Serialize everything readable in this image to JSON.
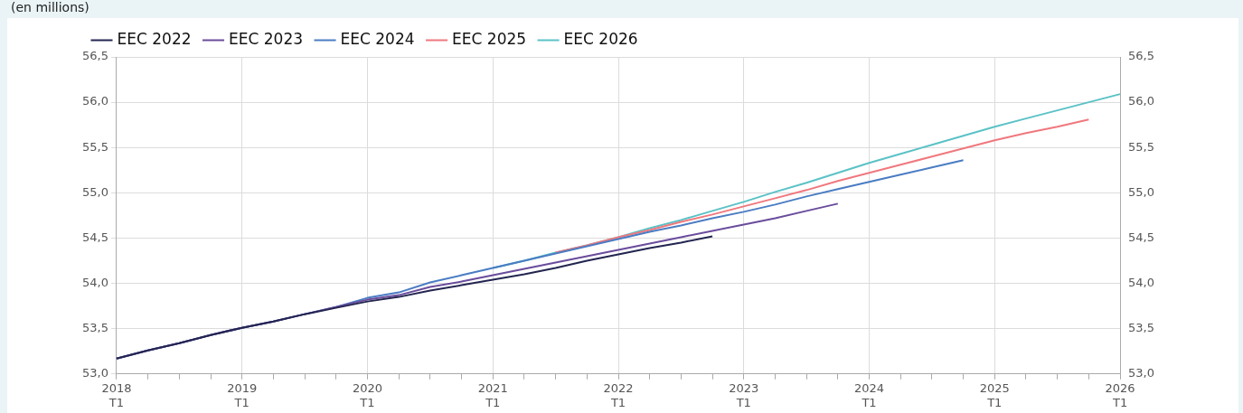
{
  "chart_data": {
    "type": "line",
    "annotations": [
      "(en millions)"
    ],
    "categories": [
      "2018\nT1",
      null,
      null,
      null,
      "2019\nT1",
      null,
      null,
      null,
      "2020\nT1",
      null,
      null,
      null,
      "2021\nT1",
      null,
      null,
      null,
      "2022\nT1",
      null,
      null,
      null,
      "2023\nT1",
      null,
      null,
      null,
      "2024\nT1",
      null,
      null,
      null,
      "2025\nT1",
      null,
      null,
      null,
      "2026\nT1"
    ],
    "series": [
      {
        "name": "EEC 2022",
        "color": "#232550",
        "values": [
          53.17,
          53.26,
          53.34,
          53.43,
          53.51,
          53.58,
          53.66,
          53.73,
          53.8,
          53.85,
          53.92,
          53.98,
          54.04,
          54.1,
          54.17,
          54.25,
          54.32,
          54.39,
          54.45,
          54.52,
          null,
          null,
          null,
          null,
          null,
          null,
          null,
          null,
          null,
          null,
          null,
          null,
          null
        ]
      },
      {
        "name": "EEC 2023",
        "color": "#6a4c9c",
        "values": [
          53.17,
          53.26,
          53.34,
          53.43,
          53.51,
          53.58,
          53.66,
          53.74,
          53.82,
          53.87,
          53.96,
          54.02,
          54.09,
          54.16,
          54.23,
          54.3,
          54.37,
          54.44,
          54.51,
          54.58,
          54.65,
          54.72,
          54.8,
          54.88,
          null,
          null,
          null,
          null,
          null,
          null,
          null,
          null,
          null
        ]
      },
      {
        "name": "EEC 2024",
        "color": "#4a7cc3",
        "values": [
          53.17,
          53.26,
          53.34,
          53.43,
          53.51,
          53.58,
          53.66,
          53.74,
          53.84,
          53.9,
          54.01,
          54.09,
          54.17,
          54.25,
          54.33,
          54.41,
          54.49,
          54.57,
          54.64,
          54.72,
          54.79,
          54.87,
          54.96,
          55.04,
          55.12,
          55.2,
          55.28,
          55.36,
          null,
          null,
          null,
          null,
          null
        ]
      },
      {
        "name": "EEC 2025",
        "color": "#f0787e",
        "values": [
          null,
          null,
          null,
          null,
          null,
          null,
          null,
          null,
          null,
          null,
          null,
          null,
          null,
          null,
          54.34,
          54.42,
          54.51,
          54.59,
          54.68,
          54.76,
          54.85,
          54.94,
          55.03,
          55.13,
          55.22,
          55.31,
          55.4,
          55.49,
          55.58,
          55.66,
          55.73,
          55.81,
          null
        ]
      },
      {
        "name": "EEC 2026",
        "color": "#5bc2c6",
        "values": [
          null,
          null,
          null,
          null,
          null,
          null,
          null,
          null,
          null,
          null,
          null,
          null,
          54.17,
          54.25,
          54.34,
          54.42,
          54.51,
          54.61,
          54.7,
          54.8,
          54.9,
          55.01,
          55.11,
          55.22,
          55.33,
          55.43,
          55.53,
          55.63,
          55.73,
          55.82,
          55.91,
          56.0,
          56.09
        ]
      }
    ],
    "ylim": [
      53,
      56.5
    ],
    "yticks": [
      {
        "value": 53,
        "label": "53,0"
      },
      {
        "value": 53.5,
        "label": "53,5"
      },
      {
        "value": 54,
        "label": "54,0"
      },
      {
        "value": 54.5,
        "label": "54,5"
      },
      {
        "value": 55,
        "label": "55,0"
      },
      {
        "value": 55.5,
        "label": "55,5"
      },
      {
        "value": 56,
        "label": "56,0"
      },
      {
        "value": 56.5,
        "label": "56,5"
      }
    ],
    "y2lim": [
      53,
      56.5
    ],
    "y2ticks": [
      {
        "value": 53,
        "label": "53,0"
      },
      {
        "value": 53.5,
        "label": "53,5"
      },
      {
        "value": 54,
        "label": "54,0"
      },
      {
        "value": 54.5,
        "label": "54,5"
      },
      {
        "value": 55,
        "label": "55,0"
      },
      {
        "value": 55.5,
        "label": "55,5"
      },
      {
        "value": 56,
        "label": "56,0"
      },
      {
        "value": 56.5,
        "label": "56,5"
      }
    ],
    "grid": true,
    "legend": "top left",
    "marker": "none",
    "line_style": "solid"
  }
}
